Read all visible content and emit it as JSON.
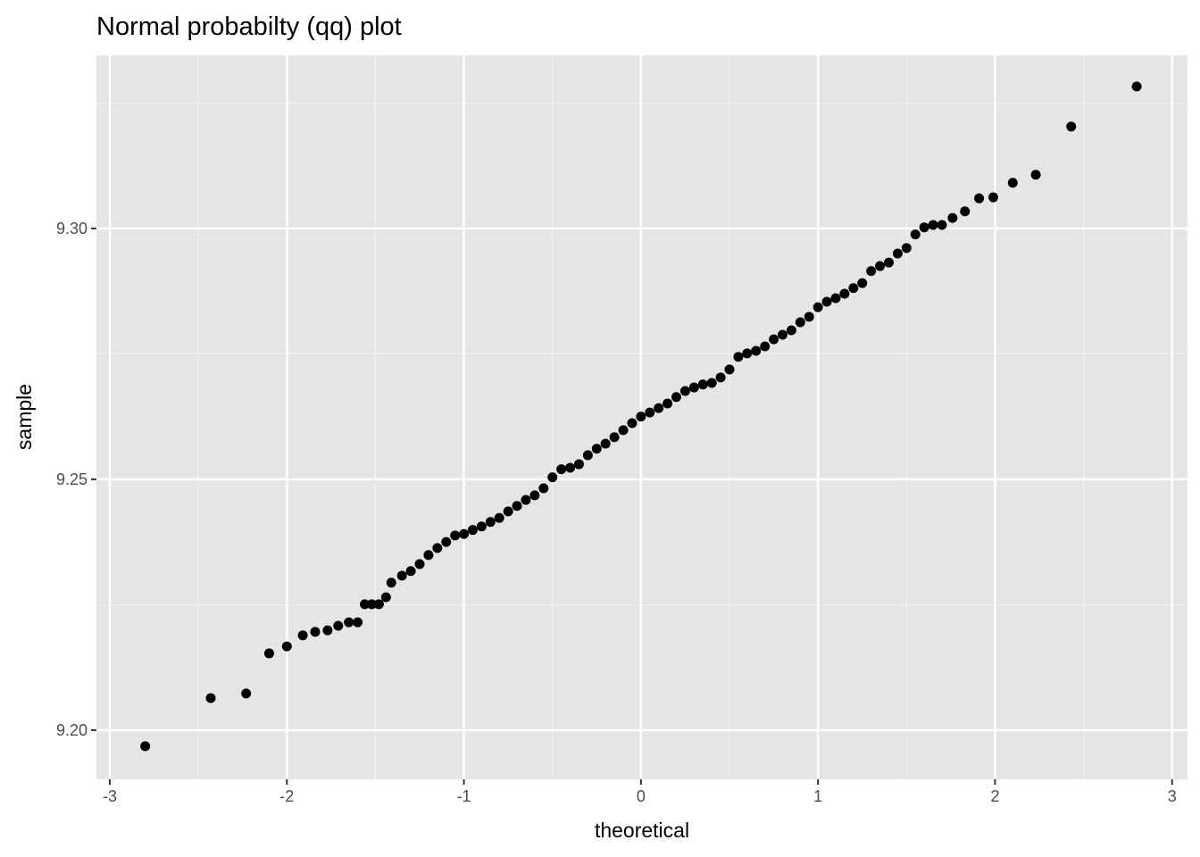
{
  "chart_data": {
    "type": "scatter",
    "title": "Normal probabilty (qq) plot",
    "x_label": "theoretical",
    "y_label": "sample",
    "color": "#000000",
    "grid": true,
    "xlim": [
      -3.0756,
      3.087
    ],
    "ylim": [
      9.1902,
      9.3345
    ],
    "xticks": [
      -3,
      -2,
      -1,
      0,
      1,
      2,
      3
    ],
    "yticks": [
      {
        "value": 9.2,
        "label": "9.20"
      },
      {
        "value": 9.25,
        "label": "9.25"
      },
      {
        "value": 9.3,
        "label": "9.30"
      }
    ],
    "x": [
      -2.8,
      -2.43,
      -2.23,
      -2.1,
      -2.0,
      -1.91,
      -1.84,
      -1.77,
      -1.71,
      -1.65,
      -1.6,
      -1.56,
      -1.52,
      -1.48,
      -1.44,
      -1.41,
      -1.35,
      -1.3,
      -1.25,
      -1.2,
      -1.15,
      -1.1,
      -1.05,
      -1.0,
      -0.95,
      -0.9,
      -0.85,
      -0.8,
      -0.75,
      -0.7,
      -0.65,
      -0.6,
      -0.55,
      -0.5,
      -0.45,
      -0.4,
      -0.35,
      -0.3,
      -0.25,
      -0.2,
      -0.15,
      -0.1,
      -0.05,
      0,
      0.05,
      0.1,
      0.15,
      0.2,
      0.25,
      0.3,
      0.35,
      0.4,
      0.45,
      0.5,
      0.55,
      0.6,
      0.65,
      0.7,
      0.75,
      0.8,
      0.85,
      0.9,
      0.95,
      1.0,
      1.05,
      1.1,
      1.15,
      1.2,
      1.25,
      1.3,
      1.35,
      1.4,
      1.45,
      1.5,
      1.55,
      1.6,
      1.65,
      1.7,
      1.76,
      1.83,
      1.91,
      1.99,
      2.1,
      2.23,
      2.43,
      2.8
    ],
    "values": [
      9.1968,
      9.2064,
      9.2073,
      9.2153,
      9.2167,
      9.2189,
      9.2196,
      9.2199,
      9.2208,
      9.2215,
      9.2215,
      9.2251,
      9.2251,
      9.2251,
      9.2265,
      9.2294,
      9.2308,
      9.2317,
      9.2331,
      9.2349,
      9.2363,
      9.2375,
      9.2388,
      9.2391,
      9.2399,
      9.2406,
      9.2415,
      9.2423,
      9.2436,
      9.2447,
      9.2459,
      9.2468,
      9.2482,
      9.2504,
      9.252,
      9.2523,
      9.253,
      9.2548,
      9.2561,
      9.2571,
      9.2584,
      9.2598,
      9.2612,
      9.2625,
      9.2633,
      9.2642,
      9.2651,
      9.2664,
      9.2676,
      9.2683,
      9.2689,
      9.2692,
      9.2703,
      9.2719,
      9.2744,
      9.2751,
      9.2756,
      9.2765,
      9.2779,
      9.2788,
      9.2797,
      9.2813,
      9.2824,
      9.2843,
      9.2854,
      9.2861,
      9.287,
      9.2881,
      9.2891,
      9.2915,
      9.2925,
      9.2932,
      9.295,
      9.2961,
      9.2988,
      9.3002,
      9.3007,
      9.3007,
      9.3021,
      9.3034,
      9.306,
      9.3062,
      9.3091,
      9.3107,
      9.3203,
      9.3283
    ]
  }
}
